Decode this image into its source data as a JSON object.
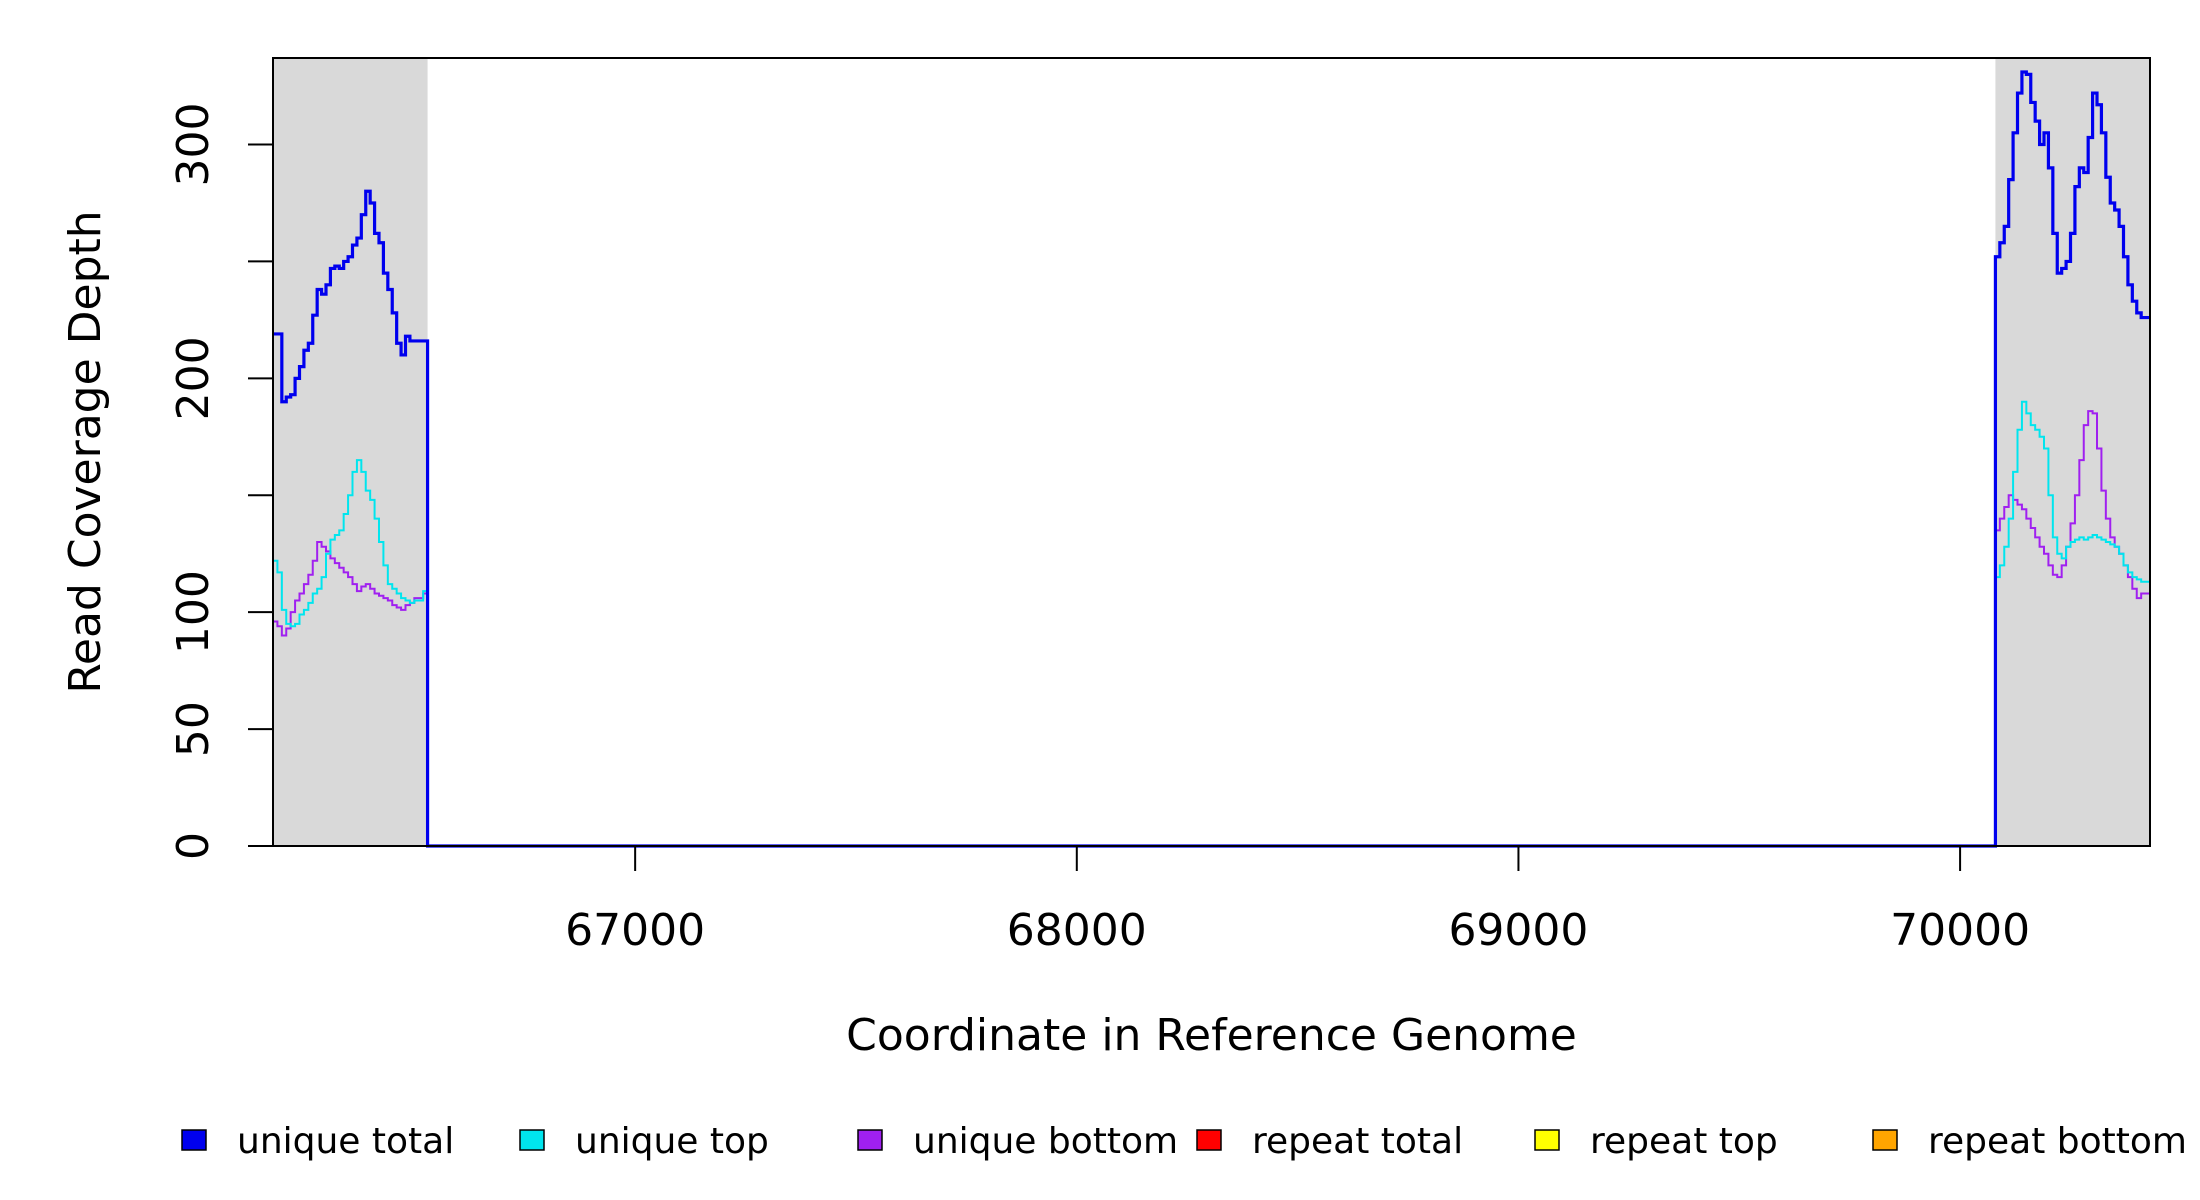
{
  "chart_data": {
    "type": "line",
    "title": "",
    "xlabel": "Coordinate in Reference Genome",
    "ylabel": "Read Coverage Depth",
    "xlim": [
      66180,
      70430
    ],
    "ylim": [
      0,
      337
    ],
    "x_ticks": [
      67000,
      68000,
      69000,
      70000
    ],
    "y_ticks": [
      0,
      50,
      100,
      150,
      200,
      250,
      300
    ],
    "y_tick_labels": [
      "0",
      "50",
      "100",
      "",
      "200",
      "",
      "300"
    ],
    "grid": false,
    "legend_position": "bottom",
    "shaded_regions": [
      [
        66180,
        66530
      ],
      [
        70080,
        70430
      ]
    ],
    "shade_color": "#d9d9d9",
    "series": [
      {
        "name": "unique total",
        "color": "#0000ee",
        "width": 3.2,
        "points": [
          [
            66180,
            219
          ],
          [
            66190,
            219
          ],
          [
            66200,
            190
          ],
          [
            66210,
            192
          ],
          [
            66220,
            193
          ],
          [
            66230,
            200
          ],
          [
            66240,
            205
          ],
          [
            66250,
            212
          ],
          [
            66260,
            215
          ],
          [
            66270,
            227
          ],
          [
            66280,
            238
          ],
          [
            66290,
            236
          ],
          [
            66300,
            240
          ],
          [
            66310,
            247
          ],
          [
            66320,
            248
          ],
          [
            66330,
            247
          ],
          [
            66340,
            250
          ],
          [
            66350,
            252
          ],
          [
            66360,
            257
          ],
          [
            66370,
            260
          ],
          [
            66380,
            270
          ],
          [
            66390,
            280
          ],
          [
            66400,
            275
          ],
          [
            66410,
            262
          ],
          [
            66420,
            258
          ],
          [
            66430,
            245
          ],
          [
            66440,
            238
          ],
          [
            66450,
            228
          ],
          [
            66460,
            215
          ],
          [
            66470,
            210
          ],
          [
            66480,
            218
          ],
          [
            66490,
            216
          ],
          [
            66500,
            216
          ],
          [
            66520,
            216
          ],
          [
            66530,
            0
          ],
          [
            70080,
            0
          ],
          [
            70080,
            252
          ],
          [
            70090,
            258
          ],
          [
            70100,
            265
          ],
          [
            70110,
            285
          ],
          [
            70120,
            305
          ],
          [
            70130,
            322
          ],
          [
            70140,
            331
          ],
          [
            70150,
            330
          ],
          [
            70160,
            318
          ],
          [
            70170,
            310
          ],
          [
            70180,
            300
          ],
          [
            70190,
            305
          ],
          [
            70200,
            290
          ],
          [
            70210,
            262
          ],
          [
            70220,
            245
          ],
          [
            70230,
            247
          ],
          [
            70240,
            250
          ],
          [
            70250,
            262
          ],
          [
            70260,
            282
          ],
          [
            70270,
            290
          ],
          [
            70280,
            288
          ],
          [
            70290,
            303
          ],
          [
            70300,
            322
          ],
          [
            70310,
            317
          ],
          [
            70320,
            305
          ],
          [
            70330,
            286
          ],
          [
            70340,
            275
          ],
          [
            70350,
            272
          ],
          [
            70360,
            265
          ],
          [
            70370,
            252
          ],
          [
            70380,
            240
          ],
          [
            70390,
            233
          ],
          [
            70400,
            228
          ],
          [
            70410,
            226
          ],
          [
            70430,
            226
          ]
        ]
      },
      {
        "name": "unique top",
        "color": "#00e5ee",
        "width": 2,
        "points": [
          [
            66180,
            122
          ],
          [
            66190,
            117
          ],
          [
            66200,
            101
          ],
          [
            66210,
            95
          ],
          [
            66220,
            94
          ],
          [
            66230,
            95
          ],
          [
            66240,
            99
          ],
          [
            66250,
            101
          ],
          [
            66260,
            104
          ],
          [
            66270,
            108
          ],
          [
            66280,
            110
          ],
          [
            66290,
            115
          ],
          [
            66300,
            125
          ],
          [
            66310,
            131
          ],
          [
            66320,
            133
          ],
          [
            66330,
            135
          ],
          [
            66340,
            142
          ],
          [
            66350,
            150
          ],
          [
            66360,
            160
          ],
          [
            66370,
            165
          ],
          [
            66380,
            160
          ],
          [
            66390,
            152
          ],
          [
            66400,
            148
          ],
          [
            66410,
            140
          ],
          [
            66420,
            130
          ],
          [
            66430,
            120
          ],
          [
            66440,
            112
          ],
          [
            66450,
            110
          ],
          [
            66460,
            108
          ],
          [
            66470,
            106
          ],
          [
            66480,
            105
          ],
          [
            66490,
            104
          ],
          [
            66500,
            105
          ],
          [
            66520,
            109
          ],
          [
            66530,
            0
          ],
          [
            70080,
            0
          ],
          [
            70080,
            115
          ],
          [
            70090,
            120
          ],
          [
            70100,
            128
          ],
          [
            70110,
            140
          ],
          [
            70120,
            160
          ],
          [
            70130,
            178
          ],
          [
            70140,
            190
          ],
          [
            70150,
            185
          ],
          [
            70160,
            180
          ],
          [
            70170,
            178
          ],
          [
            70180,
            175
          ],
          [
            70190,
            170
          ],
          [
            70200,
            150
          ],
          [
            70210,
            132
          ],
          [
            70220,
            125
          ],
          [
            70230,
            123
          ],
          [
            70240,
            128
          ],
          [
            70250,
            130
          ],
          [
            70260,
            131
          ],
          [
            70270,
            132
          ],
          [
            70280,
            131
          ],
          [
            70290,
            132
          ],
          [
            70300,
            133
          ],
          [
            70310,
            132
          ],
          [
            70320,
            131
          ],
          [
            70330,
            130
          ],
          [
            70340,
            129
          ],
          [
            70350,
            128
          ],
          [
            70360,
            125
          ],
          [
            70370,
            120
          ],
          [
            70380,
            117
          ],
          [
            70390,
            115
          ],
          [
            70400,
            114
          ],
          [
            70410,
            113
          ],
          [
            70430,
            113
          ]
        ]
      },
      {
        "name": "unique bottom",
        "color": "#a020f0",
        "width": 2,
        "points": [
          [
            66180,
            96
          ],
          [
            66190,
            94
          ],
          [
            66200,
            90
          ],
          [
            66210,
            93
          ],
          [
            66220,
            100
          ],
          [
            66230,
            105
          ],
          [
            66240,
            108
          ],
          [
            66250,
            112
          ],
          [
            66260,
            116
          ],
          [
            66270,
            122
          ],
          [
            66280,
            130
          ],
          [
            66290,
            128
          ],
          [
            66300,
            126
          ],
          [
            66310,
            123
          ],
          [
            66320,
            121
          ],
          [
            66330,
            119
          ],
          [
            66340,
            117
          ],
          [
            66350,
            115
          ],
          [
            66360,
            112
          ],
          [
            66370,
            109
          ],
          [
            66380,
            111
          ],
          [
            66390,
            112
          ],
          [
            66400,
            110
          ],
          [
            66410,
            108
          ],
          [
            66420,
            107
          ],
          [
            66430,
            106
          ],
          [
            66440,
            105
          ],
          [
            66450,
            103
          ],
          [
            66460,
            102
          ],
          [
            66470,
            101
          ],
          [
            66480,
            103
          ],
          [
            66490,
            104
          ],
          [
            66500,
            106
          ],
          [
            66520,
            108
          ],
          [
            66530,
            0
          ],
          [
            70080,
            0
          ],
          [
            70080,
            135
          ],
          [
            70090,
            140
          ],
          [
            70100,
            145
          ],
          [
            70110,
            150
          ],
          [
            70120,
            148
          ],
          [
            70130,
            146
          ],
          [
            70140,
            144
          ],
          [
            70150,
            140
          ],
          [
            70160,
            136
          ],
          [
            70170,
            132
          ],
          [
            70180,
            128
          ],
          [
            70190,
            125
          ],
          [
            70200,
            120
          ],
          [
            70210,
            116
          ],
          [
            70220,
            115
          ],
          [
            70230,
            120
          ],
          [
            70240,
            128
          ],
          [
            70250,
            138
          ],
          [
            70260,
            150
          ],
          [
            70270,
            165
          ],
          [
            70280,
            180
          ],
          [
            70290,
            186
          ],
          [
            70300,
            185
          ],
          [
            70310,
            170
          ],
          [
            70320,
            152
          ],
          [
            70330,
            140
          ],
          [
            70340,
            132
          ],
          [
            70350,
            128
          ],
          [
            70360,
            125
          ],
          [
            70370,
            120
          ],
          [
            70380,
            115
          ],
          [
            70390,
            110
          ],
          [
            70400,
            106
          ],
          [
            70410,
            108
          ],
          [
            70430,
            108
          ]
        ]
      },
      {
        "name": "repeat total",
        "color": "#ff0000",
        "width": 2,
        "points": [
          [
            66180,
            0
          ],
          [
            70430,
            0
          ]
        ]
      },
      {
        "name": "repeat top",
        "color": "#ffff00",
        "width": 2,
        "points": [
          [
            66180,
            0
          ],
          [
            70430,
            0
          ]
        ]
      },
      {
        "name": "repeat bottom",
        "color": "#ffa500",
        "width": 2,
        "points": [
          [
            66180,
            0
          ],
          [
            66530,
            0
          ],
          [
            70080,
            0
          ],
          [
            70430,
            0
          ]
        ]
      }
    ]
  }
}
